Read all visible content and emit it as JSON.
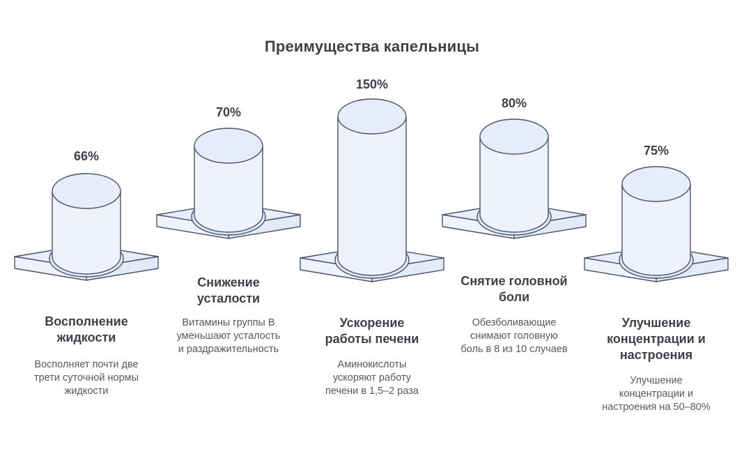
{
  "page": {
    "title": "Преимущества капельницы"
  },
  "palette": {
    "background": "#ffffff",
    "stroke": "#49536a",
    "cylinder_body": "#eef2fc",
    "cylinder_top": "#e7ecfa",
    "platform_top": "#e9eefb",
    "platform_left": "#f0f3fd",
    "platform_right": "#e4eaf8",
    "shadow_ring": "#e2e8f8",
    "heading_text": "#3d4147",
    "body_text": "#55595f"
  },
  "items": [
    {
      "value": 66,
      "value_label": "66%",
      "title_lines": [
        "Восполнение",
        "жидкости"
      ],
      "description_lines": [
        "Восполняет почти две",
        "трети суточной нормы",
        "жидкости"
      ]
    },
    {
      "value": 70,
      "value_label": "70%",
      "title_lines": [
        "Снижение",
        "усталости"
      ],
      "description_lines": [
        "Витамины группы B",
        "уменьшают усталость",
        "и раздражительность"
      ]
    },
    {
      "value": 150,
      "value_label": "150%",
      "title_lines": [
        "Ускорение",
        "работы печени"
      ],
      "description_lines": [
        "Аминокислоты",
        "ускоряют работу",
        "печени в 1,5–2 раза"
      ]
    },
    {
      "value": 80,
      "value_label": "80%",
      "title_lines": [
        "Снятие головной",
        "боли"
      ],
      "description_lines": [
        "Обезболивающие",
        "снимают головную",
        "боль в 8 из 10 случаев"
      ]
    },
    {
      "value": 75,
      "value_label": "75%",
      "title_lines": [
        "Улучшение",
        "концентрации и",
        "настроения"
      ],
      "description_lines": [
        "Улучшение",
        "концентрации и",
        "настроения на 50–80%"
      ]
    }
  ],
  "chart_data": {
    "type": "bar",
    "title": "Преимущества капельницы",
    "categories": [
      "Восполнение жидкости",
      "Снижение усталости",
      "Ускорение работы печени",
      "Снятие головной боли",
      "Улучшение концентрации и настроения"
    ],
    "values": [
      66,
      70,
      150,
      80,
      75
    ],
    "value_labels": [
      "66%",
      "70%",
      "150%",
      "80%",
      "75%"
    ],
    "annotations": [
      "Восполняет почти две трети суточной нормы жидкости",
      "Витамины группы B уменьшают усталость и раздражительность",
      "Аминокислоты ускоряют работу печени в 1,5–2 раза",
      "Обезболивающие снимают головную боль в 8 из 10 случаев",
      "Улучшение концентрации и настроения на 50–80%"
    ],
    "unit": "%",
    "legend": false,
    "grid": false,
    "style": "isometric 3d cylinders on square pedestals, staggered baselines"
  }
}
